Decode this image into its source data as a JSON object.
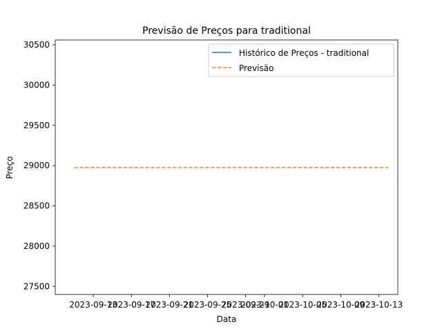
{
  "chart_data": {
    "type": "line",
    "title": "Previsão de Preços para traditional",
    "xlabel": "Data",
    "ylabel": "Preço",
    "xlim": [
      "2023-09-09",
      "2023-10-15"
    ],
    "ylim": [
      27400,
      30560
    ],
    "x_ticks": [
      "2023-09-13",
      "2023-09-17",
      "2023-09-21",
      "2023-09-25",
      "2023-09-29",
      "2023-10-01",
      "2023-10-05",
      "2023-10-09",
      "2023-10-13"
    ],
    "y_ticks": [
      27500,
      28000,
      28500,
      29000,
      29500,
      30000,
      30500
    ],
    "legend_position": "top-right",
    "grid": false,
    "series": [
      {
        "name": "Histórico de Preços - traditional",
        "color": "#1f77b4",
        "style": "solid",
        "x": [],
        "y": []
      },
      {
        "name": "Previsão",
        "color": "#ff7f0e",
        "style": "dashed",
        "x": [
          "2023-09-11",
          "2023-10-14"
        ],
        "y": [
          28975,
          28975
        ]
      }
    ]
  }
}
